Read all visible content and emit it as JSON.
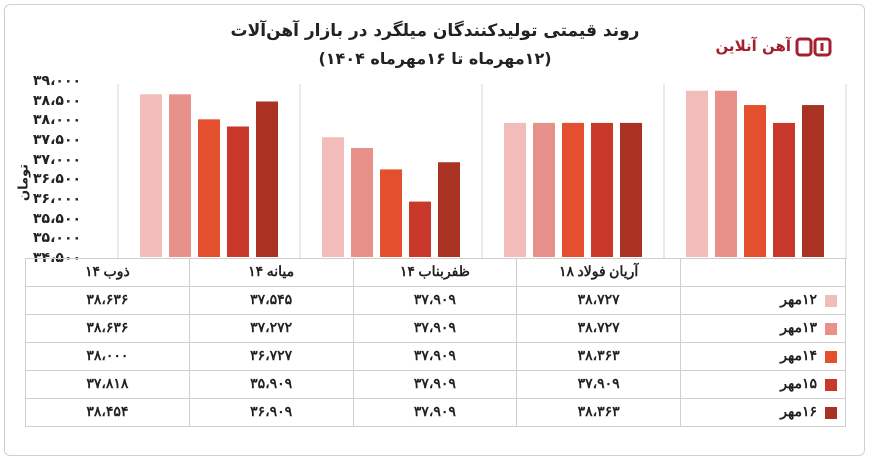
{
  "title": "روند قیمتی تولیدکنندگان میلگرد در بازار آهن‌آلات",
  "subtitle": "(۱۲مهرماه تا ۱۶مهرماه ۱۴۰۴)",
  "logo": {
    "text": "آهن آنلاین",
    "accent": "#a3202e"
  },
  "chart_data": {
    "type": "bar",
    "ylabel": "تومان",
    "ylim": [
      34500,
      39000
    ],
    "y_ticks": [
      39000,
      38500,
      38000,
      37500,
      37000,
      36500,
      36000,
      35500,
      35000,
      34500
    ],
    "y_tick_labels": [
      "۳۹،۰۰۰",
      "۳۸،۵۰۰",
      "۳۸،۰۰۰",
      "۳۷،۵۰۰",
      "۳۷،۰۰۰",
      "۳۶،۵۰۰",
      "۳۶،۰۰۰",
      "۳۵،۵۰۰",
      "۳۵،۰۰۰",
      "۳۴،۵۰۰"
    ],
    "categories": [
      "آریان فولاد ۱۸",
      "ظفربناب ۱۴",
      "میانه ۱۴",
      "ذوب ۱۴"
    ],
    "grid": false,
    "legend": "table-below",
    "series": [
      {
        "name": "۱۲مهر",
        "color": "#f2bcb8",
        "values": [
          38727,
          37909,
          37545,
          38636
        ],
        "labels": [
          "۳۸،۷۲۷",
          "۳۷،۹۰۹",
          "۳۷،۵۴۵",
          "۳۸،۶۳۶"
        ]
      },
      {
        "name": "۱۳مهر",
        "color": "#e8908a",
        "values": [
          38727,
          37909,
          37272,
          38636
        ],
        "labels": [
          "۳۸،۷۲۷",
          "۳۷،۹۰۹",
          "۳۷،۲۷۲",
          "۳۸،۶۳۶"
        ]
      },
      {
        "name": "۱۴مهر",
        "color": "#e4502e",
        "values": [
          38363,
          37909,
          36727,
          38000
        ],
        "labels": [
          "۳۸،۳۶۳",
          "۳۷،۹۰۹",
          "۳۶،۷۲۷",
          "۳۸،۰۰۰"
        ]
      },
      {
        "name": "۱۵مهر",
        "color": "#c8392b",
        "values": [
          37909,
          37909,
          35909,
          37818
        ],
        "labels": [
          "۳۷،۹۰۹",
          "۳۷،۹۰۹",
          "۳۵،۹۰۹",
          "۳۷،۸۱۸"
        ]
      },
      {
        "name": "۱۶مهر",
        "color": "#a93222",
        "values": [
          38363,
          37909,
          36909,
          38454
        ],
        "labels": [
          "۳۸،۳۶۳",
          "۳۷،۹۰۹",
          "۳۶،۹۰۹",
          "۳۸،۴۵۴"
        ]
      }
    ]
  }
}
